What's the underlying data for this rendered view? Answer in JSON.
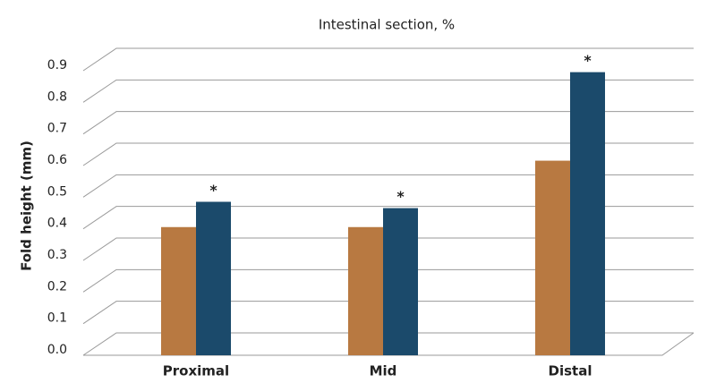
{
  "chart_data": {
    "type": "bar",
    "title": "Intestinal section, %",
    "y_label": "Fold height (mm)",
    "categories": [
      "Proximal",
      "Mid",
      "Distal"
    ],
    "series": [
      {
        "color": "#b87941",
        "values": [
          0.37,
          0.37,
          0.58
        ]
      },
      {
        "color": "#1b4a6b",
        "values": [
          0.45,
          0.43,
          0.86
        ],
        "annotations": [
          "*",
          "*",
          "*"
        ]
      }
    ],
    "ylim": [
      0,
      0.9
    ],
    "yticks": [
      {
        "value": 0,
        "label": "0.0"
      },
      0.1,
      0.2,
      0.3,
      0.4,
      0.5,
      0.6,
      0.7,
      0.8,
      0.9
    ],
    "grid": true
  }
}
